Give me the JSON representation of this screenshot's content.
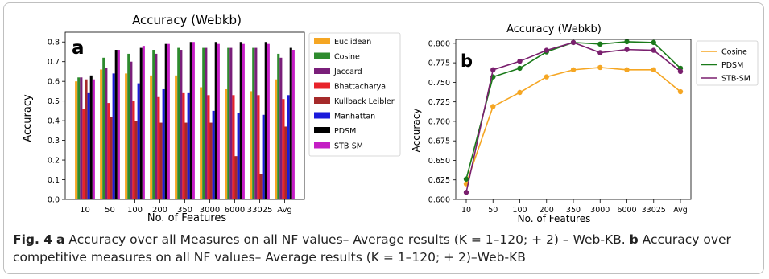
{
  "chart_data": [
    {
      "type": "bar",
      "panel_label": "a",
      "title": "Accuracy (Webkb)",
      "xlabel": "No. of Features",
      "ylabel": "Accuracy",
      "ylim": [
        0,
        0.85
      ],
      "yticks": [
        "0.0",
        "0.1",
        "0.2",
        "0.3",
        "0.4",
        "0.5",
        "0.6",
        "0.7",
        "0.8"
      ],
      "categories": [
        "10",
        "50",
        "100",
        "200",
        "350",
        "3000",
        "6000",
        "33025",
        "Avg"
      ],
      "legend_position": "right",
      "series": [
        {
          "name": "Euclidean",
          "color": "#f5a623",
          "values": [
            0.6,
            0.66,
            0.64,
            0.63,
            0.63,
            0.57,
            0.56,
            0.55,
            0.61
          ]
        },
        {
          "name": "Cosine",
          "color": "#2e8b2e",
          "values": [
            0.62,
            0.72,
            0.74,
            0.76,
            0.77,
            0.77,
            0.77,
            0.77,
            0.74
          ]
        },
        {
          "name": "Jaccard",
          "color": "#7a1f7a",
          "values": [
            0.62,
            0.67,
            0.7,
            0.74,
            0.76,
            0.77,
            0.77,
            0.77,
            0.72
          ]
        },
        {
          "name": "Bhattacharya",
          "color": "#e8232b",
          "values": [
            0.46,
            0.49,
            0.5,
            0.52,
            0.54,
            0.53,
            0.53,
            0.53,
            0.51
          ]
        },
        {
          "name": "Kullback Leibler",
          "color": "#a52a2a",
          "values": [
            0.61,
            0.42,
            0.4,
            0.39,
            0.39,
            0.39,
            0.22,
            0.13,
            0.37
          ]
        },
        {
          "name": "Manhattan",
          "color": "#1a1adb",
          "values": [
            0.54,
            0.64,
            0.59,
            0.56,
            0.54,
            0.45,
            0.44,
            0.43,
            0.53
          ]
        },
        {
          "name": "PDSM",
          "color": "#000000",
          "values": [
            0.63,
            0.76,
            0.77,
            0.79,
            0.8,
            0.8,
            0.8,
            0.8,
            0.77
          ]
        },
        {
          "name": "STB-SM",
          "color": "#c41ec4",
          "values": [
            0.61,
            0.76,
            0.78,
            0.79,
            0.8,
            0.79,
            0.79,
            0.79,
            0.76
          ]
        }
      ]
    },
    {
      "type": "line",
      "panel_label": "b",
      "title": "Accuracy (Webkb)",
      "xlabel": "No. of Features",
      "ylabel": "Accuracy",
      "ylim": [
        0.6,
        0.805
      ],
      "yticks": [
        "0.600",
        "0.625",
        "0.650",
        "0.675",
        "0.700",
        "0.725",
        "0.750",
        "0.775",
        "0.800"
      ],
      "categories": [
        "10",
        "50",
        "100",
        "200",
        "350",
        "3000",
        "6000",
        "33025",
        "Avg"
      ],
      "legend_position": "right",
      "series": [
        {
          "name": "Cosine",
          "color": "#f5a623",
          "values": [
            0.62,
            0.719,
            0.737,
            0.757,
            0.766,
            0.769,
            0.766,
            0.766,
            0.738
          ]
        },
        {
          "name": "PDSM",
          "color": "#1a7a1a",
          "values": [
            0.626,
            0.757,
            0.768,
            0.789,
            0.801,
            0.799,
            0.802,
            0.801,
            0.768
          ]
        },
        {
          "name": "STB-SM",
          "color": "#7a1f6e",
          "values": [
            0.609,
            0.766,
            0.777,
            0.791,
            0.801,
            0.788,
            0.792,
            0.791,
            0.764
          ]
        }
      ]
    }
  ],
  "caption": {
    "fig_label": "Fig. 4",
    "a_label": "a",
    "a_text": "Accuracy over all Measures on all NF values– Average results (K = 1–120; + 2) – Web-KB.",
    "b_label": "b",
    "b_text": "Accuracy over competitive measures on all NF values– Average results (K = 1–120; + 2)–Web-KB"
  }
}
